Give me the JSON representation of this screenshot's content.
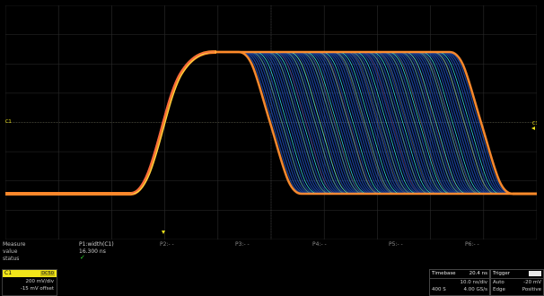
{
  "colors": {
    "background": "#000000",
    "grid": "#2c2c2c",
    "trace_hot": "#ff8a2a",
    "trace_warm": "#ffe040",
    "trace_cool": "#2a6cff",
    "trace_cyan": "#38e0ff",
    "channel": "#f2e61a",
    "status_ok": "#33dd33"
  },
  "markers": {
    "left_channel": "C1",
    "right_channel": "C1"
  },
  "measure": {
    "headers": [
      "Measure",
      "value",
      "status"
    ],
    "params": [
      {
        "name": "P1:width(C1)",
        "value": "16.300 ns",
        "status": "✓"
      },
      {
        "name": "P2:- -"
      },
      {
        "name": "P3:- -"
      },
      {
        "name": "P4:- -"
      },
      {
        "name": "P5:- -"
      },
      {
        "name": "P6:- -"
      }
    ]
  },
  "channel": {
    "name": "C1",
    "coupling": "DC50",
    "volts_div": "200 mV/div",
    "offset": "-15 mV offset"
  },
  "timebase": {
    "label": "Timebase",
    "value": "20.4 ns",
    "time_div": "10.0 ns/div",
    "memory": "400 S",
    "sample_rate": "4.00 GS/s"
  },
  "trigger": {
    "label": "Trigger",
    "tag": "DC",
    "mode": "Auto",
    "level": "-20 mV",
    "type": "Edge",
    "slope": "Positive"
  }
}
